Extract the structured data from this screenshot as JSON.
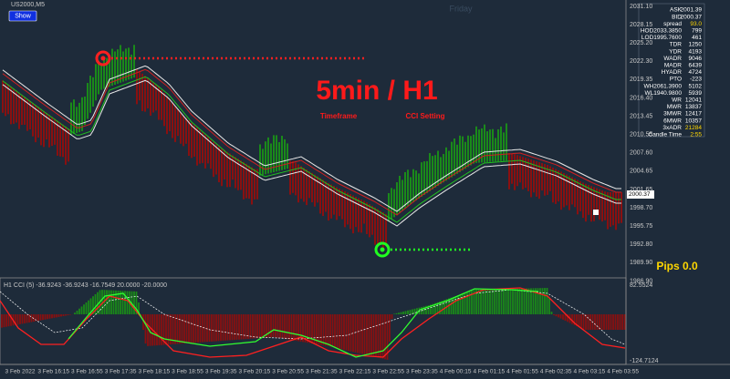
{
  "window": {
    "title": "US2000,M5",
    "button": "Show",
    "watermark": "Friday"
  },
  "overlay": {
    "headline": "5min / H1",
    "left_caption": "Timeframe",
    "right_caption": "CCI Setting",
    "pips": "Pips 0.0"
  },
  "price_axis": {
    "labels": [
      "2031.10",
      "2028.15",
      "2025.20",
      "2022.30",
      "2019.35",
      "2016.40",
      "2013.45",
      "2010.55",
      "2007.60",
      "2004.65",
      "2001.65",
      "1998.70",
      "1995.75",
      "1992.80",
      "1989.90",
      "1986.90"
    ],
    "current": "2000.37"
  },
  "info_panel": {
    "rows": [
      {
        "label": "ASK",
        "value": "2001.39"
      },
      {
        "label": "BID",
        "value": "2000.37"
      },
      {
        "label": "spread",
        "value": "93.0"
      },
      {
        "label": "HOD2033.3850",
        "value": "799"
      },
      {
        "label": "LOD1995.7600",
        "value": "461"
      },
      {
        "label": "TDR",
        "value": "1250"
      },
      {
        "label": "YDR",
        "value": "4193"
      },
      {
        "label": "WADR",
        "value": "9046"
      },
      {
        "label": "MADR",
        "value": "6439"
      },
      {
        "label": "HYADR",
        "value": "4724"
      },
      {
        "label": "PTO",
        "value": "-223"
      },
      {
        "label": "WH2061.3900",
        "value": "5102"
      },
      {
        "label": "WL1940.9800",
        "value": "5939"
      },
      {
        "label": "WR",
        "value": "12041"
      },
      {
        "label": "MWR",
        "value": "13837"
      },
      {
        "label": "3MWR",
        "value": "12417"
      },
      {
        "label": "6MWR",
        "value": "10357"
      },
      {
        "label": "3xADR",
        "value": "21284"
      },
      {
        "label": "Candle Time",
        "value": "2:55"
      }
    ]
  },
  "indicator": {
    "label": "H1 CCI (5) -36.9243 -36.9243 -16.7549 20.0000 -20.0000",
    "axis": [
      "82.5524",
      "-124.7124"
    ]
  },
  "time_axis": {
    "labels": [
      "3 Feb 2022",
      "3 Feb 16:15",
      "3 Feb 16:55",
      "3 Feb 17:35",
      "3 Feb 18:15",
      "3 Feb 18:55",
      "3 Feb 19:35",
      "3 Feb 20:15",
      "3 Feb 20:55",
      "3 Feb 21:35",
      "3 Feb 22:15",
      "3 Feb 22:55",
      "3 Feb 23:35",
      "4 Feb 00:15",
      "4 Feb 01:15",
      "4 Feb 01:55",
      "4 Feb 02:35",
      "4 Feb 03:15",
      "4 Feb 03:55"
    ]
  }
}
